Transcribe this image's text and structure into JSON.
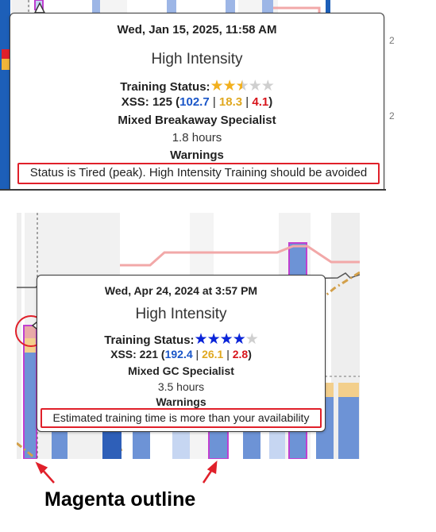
{
  "top_tooltip": {
    "date": "Wed, Jan 15, 2025, 11:58 AM",
    "intensity": "High Intensity",
    "status_label": "Training Status:",
    "stars": {
      "rating": 2.5,
      "max": 5,
      "filled_color": "#f2b01e",
      "empty_color": "#cfcfcf"
    },
    "xss_prefix": "XSS: 125 (",
    "xss_low": "102.7",
    "xss_high": "18.3",
    "xss_peak": "4.1",
    "xss_suffix": ")",
    "sep": " | ",
    "specialist": "Mixed Breakaway Specialist",
    "duration": "1.8 hours",
    "warnings_label": "Warnings",
    "warning_text": "Status is Tired (peak). High Intensity Training should be avoided"
  },
  "bottom_tooltip": {
    "date": "Wed, Apr 24, 2024 at 3:57 PM",
    "intensity": "High Intensity",
    "status_label": "Training Status:",
    "stars": {
      "rating": 4,
      "max": 5,
      "filled_color": "#0a24d8",
      "empty_color": "#cfcfcf"
    },
    "xss_prefix": "XSS: 221 (",
    "xss_low": "192.4",
    "xss_high": "26.1",
    "xss_peak": "2.8",
    "xss_suffix": ")",
    "sep": " | ",
    "specialist": "Mixed GC Specialist",
    "duration": "3.5 hours",
    "warnings_label": "Warnings",
    "warning_text": "Estimated training time is more than your availability"
  },
  "annotation": {
    "caption": "Magenta outline",
    "arrow_color": "#e0202a",
    "outline_color": "#c040d0"
  },
  "colors": {
    "bar_blue": "#6d93d6",
    "bar_light": "#c6d6f2",
    "bar_gold": "#f3cf8c",
    "bar_red": "#e8a9a8",
    "bar_dark": "#2e5fb8",
    "pink_line": "#f2a8a8",
    "gold_dash": "#d3a04a"
  }
}
